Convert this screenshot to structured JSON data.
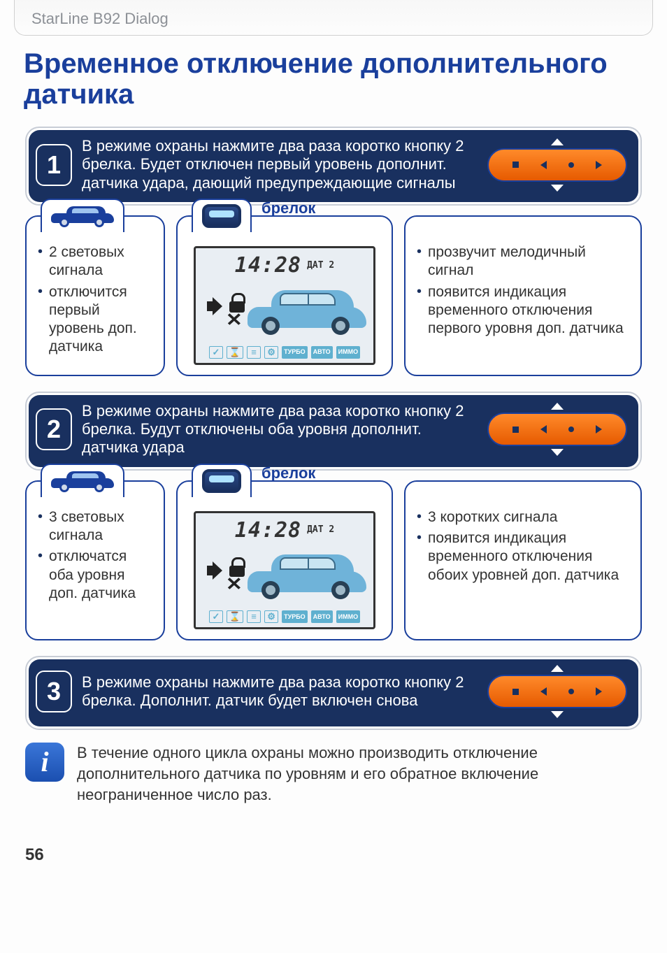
{
  "header": {
    "product": "StarLine B92 Dialog"
  },
  "page": {
    "number": "56"
  },
  "title": "Временное отключение дополнительного датчика",
  "colors": {
    "accent": "#1a3f9c",
    "stepBg": "#19305f",
    "remoteOrange": "#f07218",
    "lcdCar": "#6fb3d9",
    "iconBlue": "#5fb0cf"
  },
  "lcd": {
    "time": "14:28",
    "sensorLabel": "ДАТ 2",
    "bottomIcons": [
      "✓",
      "⌛",
      "≡",
      "⚙",
      "ТУРБО",
      "АВТО",
      "ИММО"
    ]
  },
  "brelokLabel": "брелок",
  "steps": [
    {
      "num": "1",
      "text": "В режиме охраны нажмите два раза коротко кнопку 2 брелка. Будет отключен первый уровень дополнит.  датчика удара, дающий  предупреждающие сигналы",
      "car": [
        "2 световых сигнала",
        "отключится первый уровень доп. датчика"
      ],
      "fob": [
        "прозвучит мелодичный сигнал",
        "появится индикация временного отключения первого уровня доп. датчика"
      ]
    },
    {
      "num": "2",
      "text": "В режиме охраны нажмите два раза коротко кнопку 2 брелка. Будут отключены оба уровня  дополнит. датчика удара",
      "car": [
        "3 световых сигнала",
        "отключатся оба уровня доп. датчика"
      ],
      "fob": [
        "3 коротких сигнала",
        "появится индикация временного отключения обоих уровней доп. датчика"
      ]
    },
    {
      "num": "3",
      "text": "В режиме охраны нажмите два раза коротко кнопку 2 брелка. Дополнит. датчик  будет включен снова"
    }
  ],
  "info": {
    "icon": "i",
    "text": "В течение одного цикла охраны можно производить отключение дополнительного датчика по уровням и его обратное включение неограниченное число  раз."
  }
}
